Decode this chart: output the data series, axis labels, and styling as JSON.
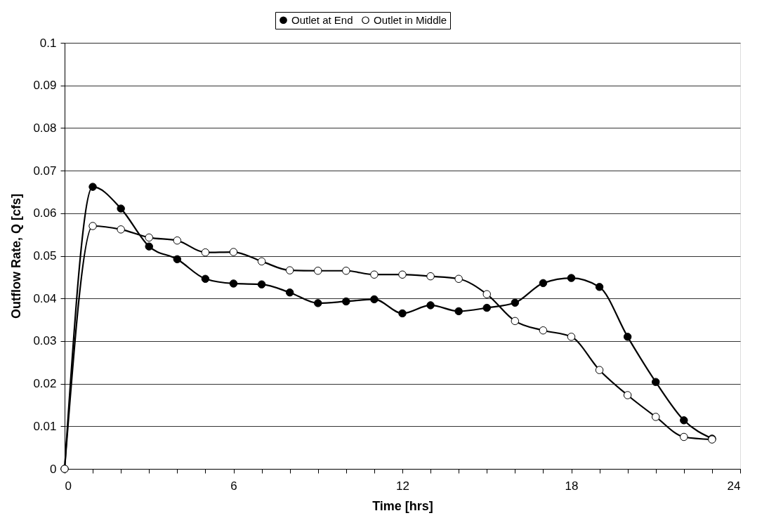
{
  "chart_data": {
    "type": "line",
    "xlabel": "Time [hrs]",
    "ylabel": "Outflow Rate, Q [cfs]",
    "x": [
      0,
      1,
      2,
      3,
      4,
      5,
      6,
      7,
      8,
      9,
      10,
      11,
      12,
      13,
      14,
      15,
      16,
      17,
      18,
      19,
      20,
      21,
      22,
      23
    ],
    "series": [
      {
        "name": "Outlet at End",
        "color": "#000000",
        "values": [
          0,
          0.0662,
          0.0611,
          0.0522,
          0.0492,
          0.0446,
          0.0435,
          0.0433,
          0.0414,
          0.0389,
          0.0393,
          0.0398,
          0.0365,
          0.0384,
          0.037,
          0.0378,
          0.039,
          0.0436,
          0.0448,
          0.0427,
          0.031,
          0.0204,
          0.0114,
          0.0071
        ]
      },
      {
        "name": "Outlet in Middle",
        "color": "#000000",
        "values": [
          0,
          0.057,
          0.0562,
          0.0543,
          0.0536,
          0.0508,
          0.0509,
          0.0487,
          0.0466,
          0.0465,
          0.0465,
          0.0456,
          0.0456,
          0.0452,
          0.0446,
          0.041,
          0.0347,
          0.0325,
          0.031,
          0.0232,
          0.0173,
          0.0122,
          0.0075,
          0.0069
        ]
      }
    ],
    "xlim": [
      0,
      24
    ],
    "xticks": [
      0,
      {
        "value": 1,
        "label": null
      },
      {
        "value": 2,
        "label": null
      },
      {
        "value": 3,
        "label": null
      },
      {
        "value": 4,
        "label": null
      },
      {
        "value": 5,
        "label": null
      },
      6,
      {
        "value": 7,
        "label": null
      },
      {
        "value": 8,
        "label": null
      },
      {
        "value": 9,
        "label": null
      },
      {
        "value": 10,
        "label": null
      },
      {
        "value": 11,
        "label": null
      },
      12,
      {
        "value": 13,
        "label": null
      },
      {
        "value": 14,
        "label": null
      },
      {
        "value": 15,
        "label": null
      },
      {
        "value": 16,
        "label": null
      },
      {
        "value": 17,
        "label": null
      },
      18,
      {
        "value": 19,
        "label": null
      },
      {
        "value": 20,
        "label": null
      },
      {
        "value": 21,
        "label": null
      },
      {
        "value": 22,
        "label": null
      },
      {
        "value": 23,
        "label": null
      },
      24
    ],
    "ylim": [
      0,
      0.1
    ],
    "yticks": [
      0,
      0.01,
      0.02,
      0.03,
      0.04,
      0.05,
      0.06,
      0.07,
      0.08,
      0.09,
      0.1
    ],
    "grid": "y",
    "legend": "top",
    "marker": "circle",
    "line_style": "solid"
  }
}
